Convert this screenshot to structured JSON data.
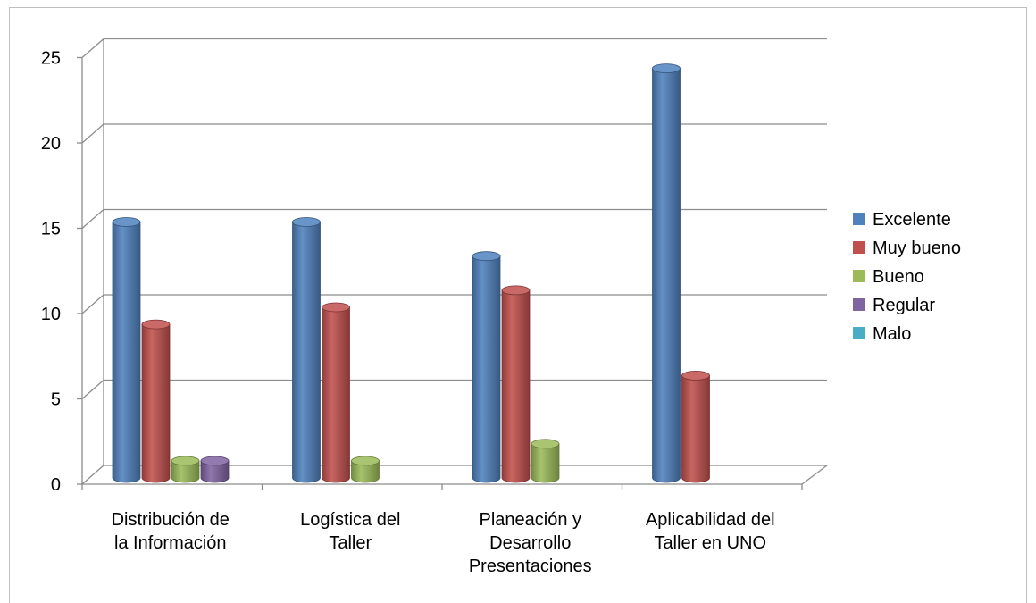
{
  "chart_data": {
    "type": "bar",
    "subtype": "3d-clustered-cylinder",
    "title": "",
    "xlabel": "",
    "ylabel": "",
    "categories": [
      [
        "Distribución de",
        "la Información"
      ],
      [
        "Logística del",
        "Taller"
      ],
      [
        "Planeación y",
        "Desarrollo",
        "Presentaciones"
      ],
      [
        "Aplicabilidad del",
        "Taller en UNO"
      ]
    ],
    "series": [
      {
        "name": "Excelente",
        "color": "#4F81BD",
        "values": [
          15,
          15,
          13,
          24
        ]
      },
      {
        "name": "Muy bueno",
        "color": "#C0504D",
        "values": [
          9,
          10,
          11,
          6
        ]
      },
      {
        "name": "Bueno",
        "color": "#9BBB59",
        "values": [
          1,
          1,
          2,
          0
        ]
      },
      {
        "name": "Regular",
        "color": "#8064A2",
        "values": [
          1,
          0,
          0,
          0
        ]
      },
      {
        "name": "Malo",
        "color": "#4BACC6",
        "values": [
          0,
          0,
          0,
          0
        ]
      }
    ],
    "ylim": [
      0,
      25
    ],
    "yticks": [
      "0",
      "5",
      "10",
      "15",
      "20",
      "25"
    ],
    "grid": true,
    "legend_position": "right"
  }
}
